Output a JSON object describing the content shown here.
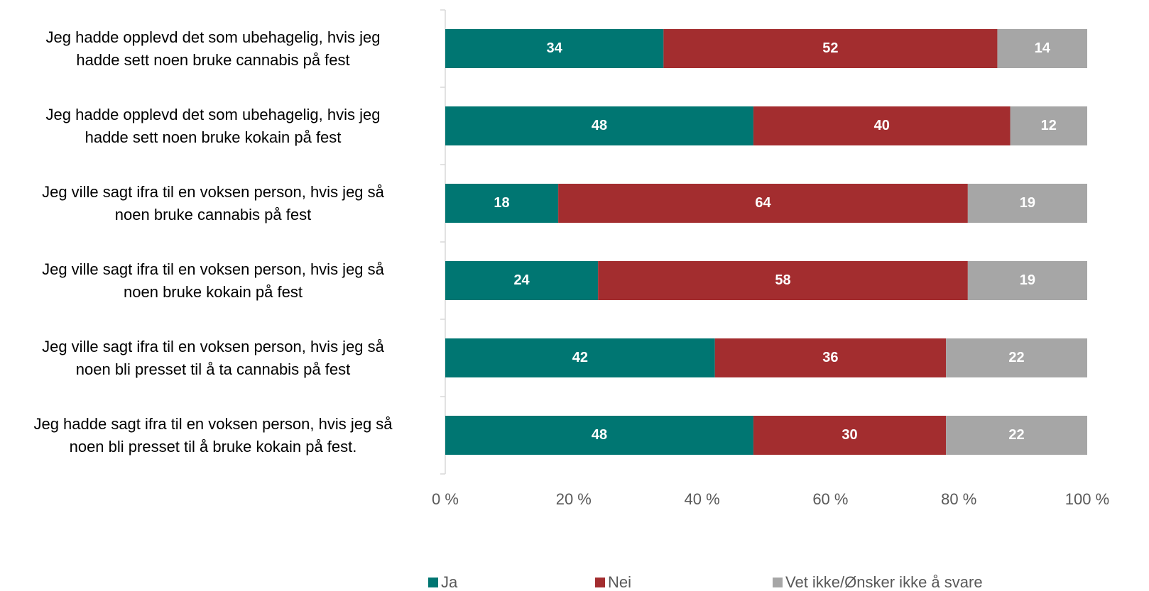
{
  "chart_data": {
    "type": "stacked_barh",
    "categories": [
      "Jeg hadde opplevd det som ubehagelig, hvis jeg\nhadde sett noen bruke cannabis på fest",
      "Jeg hadde opplevd det som ubehagelig, hvis jeg\nhadde sett noen bruke kokain på fest",
      "Jeg ville sagt ifra til en voksen person, hvis jeg så\nnoen bruke cannabis på fest",
      "Jeg ville sagt ifra til en voksen person, hvis jeg så\nnoen bruke kokain på fest",
      "Jeg ville sagt ifra til en voksen person, hvis jeg så\nnoen bli presset til å ta cannabis på fest",
      "Jeg hadde sagt ifra til en voksen person, hvis jeg så\nnoen bli presset til å bruke kokain på fest."
    ],
    "series": [
      {
        "name": "Ja",
        "color": "#007672",
        "values": [
          34,
          48,
          17.6,
          23.8,
          42,
          48
        ],
        "value_labels": [
          "34",
          "48",
          "18",
          "24",
          "42",
          "48"
        ]
      },
      {
        "name": "Nei",
        "color": "#a32d2f",
        "values": [
          52,
          40,
          63.8,
          57.6,
          36,
          30
        ],
        "value_labels": [
          "52",
          "40",
          "64",
          "58",
          "36",
          "30"
        ]
      },
      {
        "name": "Vet ikke/Ønsker ikke å svare",
        "color": "#a6a6a6",
        "values": [
          14,
          12,
          18.6,
          18.6,
          22,
          22
        ],
        "value_labels": [
          "14",
          "12",
          "19",
          "19",
          "22",
          "22"
        ]
      }
    ],
    "xlim": [
      0,
      100
    ],
    "xticks": [
      {
        "value": 0,
        "label": "0 %"
      },
      {
        "value": 20,
        "label": "20 %"
      },
      {
        "value": 40,
        "label": "40 %"
      },
      {
        "value": 60,
        "label": "60 %"
      },
      {
        "value": 80,
        "label": "80 %"
      },
      {
        "value": 100,
        "label": "100 %"
      }
    ],
    "legend": "bottom"
  }
}
